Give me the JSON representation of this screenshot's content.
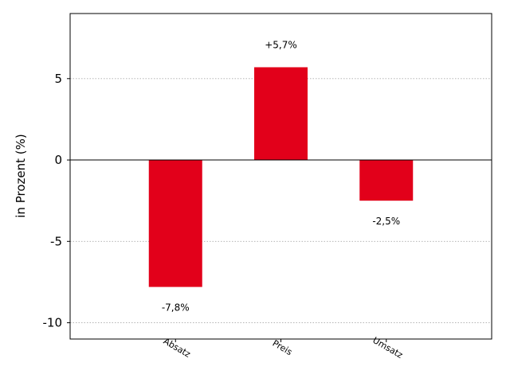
{
  "chart_data": {
    "type": "bar",
    "categories": [
      "Absatz",
      "Preis",
      "Umsatz"
    ],
    "values": [
      -7.8,
      5.7,
      -2.5
    ],
    "data_labels": [
      "-7,8%",
      "+5,7%",
      "-2,5%"
    ],
    "ylabel": "in Prozent (%)",
    "xlabel": "",
    "title": "",
    "ylim": [
      -11,
      9
    ],
    "yticks": [
      -10,
      -5,
      0,
      5
    ],
    "ytick_labels": [
      "-10",
      "-5",
      "0",
      "5"
    ],
    "grid": "horizontal dotted",
    "bar_color": "#e2001a"
  }
}
